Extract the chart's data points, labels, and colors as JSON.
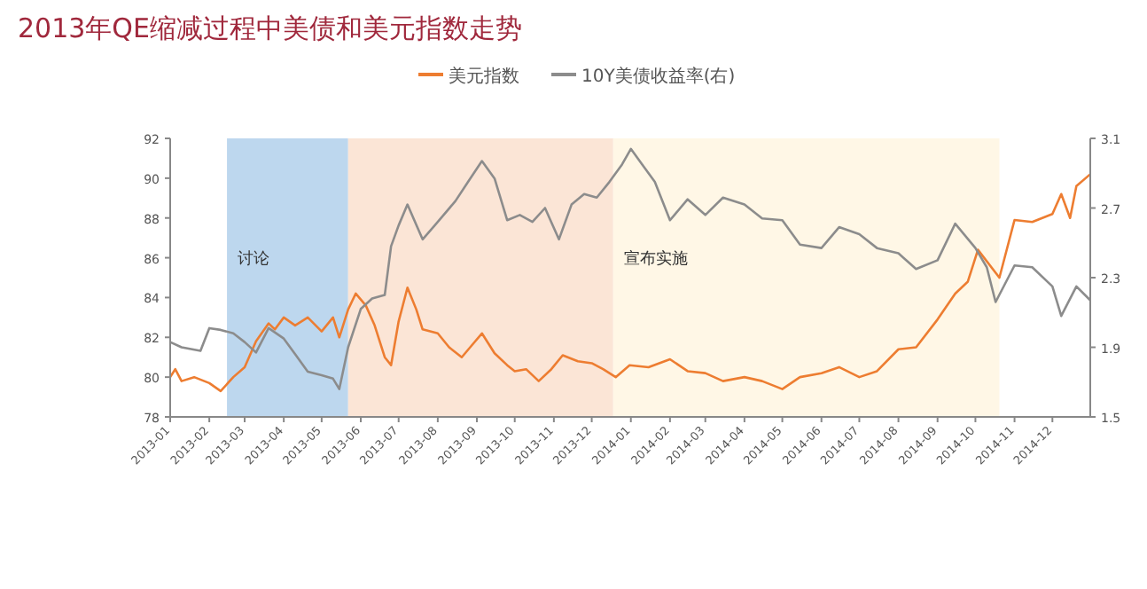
{
  "chart_data": {
    "type": "line",
    "title": "2013年QE缩减过程中美债和美元指数走势",
    "legend": "top",
    "xlim": [
      "2013-01-01",
      "2014-12-31"
    ],
    "xticks": [
      "2013-01",
      "2013-02",
      "2013-03",
      "2013-04",
      "2013-05",
      "2013-06",
      "2013-07",
      "2013-08",
      "2013-09",
      "2013-10",
      "2013-11",
      "2013-12",
      "2014-01",
      "2014-02",
      "2014-03",
      "2014-04",
      "2014-05",
      "2014-06",
      "2014-07",
      "2014-08",
      "2014-09",
      "2014-10",
      "2014-11",
      "2014-12"
    ],
    "ylim": [
      78,
      92
    ],
    "yticks": [
      78,
      80,
      82,
      84,
      86,
      88,
      90,
      92
    ],
    "y2lim": [
      1.5,
      3.1
    ],
    "y2ticks": [
      1.5,
      1.9,
      2.3,
      2.7,
      3.1
    ],
    "bands": [
      {
        "axis": "x",
        "from": "2013-02-15",
        "to": "2013-05-22",
        "label": "讨论",
        "color": "#bdd7ee"
      },
      {
        "axis": "x",
        "from": "2013-05-22",
        "to": "2013-12-18",
        "color": "#fbe5d6"
      },
      {
        "axis": "x",
        "from": "2013-12-18",
        "to": "2014-10-20",
        "label": "宣布实施",
        "color": "#fff7e6"
      }
    ],
    "series": [
      {
        "name": "美元指数",
        "color": "#ed7d31",
        "x": [
          "2013-01-01",
          "2013-01-05",
          "2013-01-10",
          "2013-01-20",
          "2013-02-01",
          "2013-02-10",
          "2013-02-20",
          "2013-03-01",
          "2013-03-10",
          "2013-03-20",
          "2013-03-25",
          "2013-04-01",
          "2013-04-10",
          "2013-04-20",
          "2013-05-01",
          "2013-05-10",
          "2013-05-15",
          "2013-05-22",
          "2013-05-28",
          "2013-06-05",
          "2013-06-12",
          "2013-06-20",
          "2013-06-25",
          "2013-07-01",
          "2013-07-08",
          "2013-07-15",
          "2013-07-20",
          "2013-08-01",
          "2013-08-10",
          "2013-08-20",
          "2013-08-28",
          "2013-09-05",
          "2013-09-15",
          "2013-09-25",
          "2013-10-01",
          "2013-10-10",
          "2013-10-20",
          "2013-10-30",
          "2013-11-08",
          "2013-11-20",
          "2013-12-01",
          "2013-12-10",
          "2013-12-20",
          "2013-12-31",
          "2014-01-15",
          "2014-02-01",
          "2014-02-15",
          "2014-03-01",
          "2014-03-15",
          "2014-04-01",
          "2014-04-15",
          "2014-05-01",
          "2014-05-15",
          "2014-06-01",
          "2014-06-15",
          "2014-07-01",
          "2014-07-15",
          "2014-08-01",
          "2014-08-15",
          "2014-09-01",
          "2014-09-15",
          "2014-09-25",
          "2014-10-03",
          "2014-10-20",
          "2014-11-01",
          "2014-11-15",
          "2014-12-01",
          "2014-12-08",
          "2014-12-15",
          "2014-12-20",
          "2014-12-31"
        ],
        "values": [
          80.0,
          80.4,
          79.8,
          80.0,
          79.7,
          79.3,
          80.0,
          80.5,
          81.8,
          82.7,
          82.4,
          83.0,
          82.6,
          83.0,
          82.3,
          83.0,
          82.0,
          83.4,
          84.2,
          83.6,
          82.6,
          81.0,
          80.6,
          82.8,
          84.5,
          83.4,
          82.4,
          82.2,
          81.5,
          81.0,
          81.6,
          82.2,
          81.2,
          80.6,
          80.3,
          80.4,
          79.8,
          80.4,
          81.1,
          80.8,
          80.7,
          80.4,
          80.0,
          80.6,
          80.5,
          80.9,
          80.3,
          80.2,
          79.8,
          80.0,
          79.8,
          79.4,
          80.0,
          80.2,
          80.5,
          80.0,
          80.3,
          81.4,
          81.5,
          82.9,
          84.2,
          84.8,
          86.4,
          85.0,
          87.9,
          87.8,
          88.2,
          89.2,
          88.0,
          89.6,
          90.2
        ]
      },
      {
        "name": "10Y美债收益率(右)",
        "color": "#8c8c8c",
        "axis": "y2",
        "x": [
          "2013-01-01",
          "2013-01-10",
          "2013-01-25",
          "2013-02-01",
          "2013-02-10",
          "2013-02-20",
          "2013-03-01",
          "2013-03-10",
          "2013-03-20",
          "2013-04-01",
          "2013-04-10",
          "2013-04-20",
          "2013-05-01",
          "2013-05-10",
          "2013-05-15",
          "2013-05-22",
          "2013-06-01",
          "2013-06-10",
          "2013-06-20",
          "2013-06-25",
          "2013-07-01",
          "2013-07-08",
          "2013-07-20",
          "2013-08-01",
          "2013-08-15",
          "2013-08-25",
          "2013-09-05",
          "2013-09-15",
          "2013-09-25",
          "2013-10-05",
          "2013-10-15",
          "2013-10-25",
          "2013-11-05",
          "2013-11-15",
          "2013-11-25",
          "2013-12-05",
          "2013-12-15",
          "2013-12-25",
          "2014-01-01",
          "2014-01-10",
          "2014-01-20",
          "2014-02-01",
          "2014-02-15",
          "2014-03-01",
          "2014-03-15",
          "2014-04-01",
          "2014-04-15",
          "2014-05-01",
          "2014-05-15",
          "2014-06-01",
          "2014-06-15",
          "2014-07-01",
          "2014-07-15",
          "2014-08-01",
          "2014-08-15",
          "2014-09-01",
          "2014-09-15",
          "2014-10-01",
          "2014-10-10",
          "2014-10-17",
          "2014-11-01",
          "2014-11-15",
          "2014-12-01",
          "2014-12-08",
          "2014-12-20",
          "2014-12-31"
        ],
        "values": [
          1.93,
          1.9,
          1.88,
          2.01,
          2.0,
          1.98,
          1.93,
          1.87,
          2.01,
          1.95,
          1.86,
          1.76,
          1.74,
          1.72,
          1.66,
          1.9,
          2.12,
          2.18,
          2.2,
          2.48,
          2.6,
          2.72,
          2.52,
          2.62,
          2.74,
          2.85,
          2.97,
          2.87,
          2.63,
          2.66,
          2.62,
          2.7,
          2.52,
          2.72,
          2.78,
          2.76,
          2.85,
          2.95,
          3.04,
          2.95,
          2.85,
          2.63,
          2.75,
          2.66,
          2.76,
          2.72,
          2.64,
          2.63,
          2.49,
          2.47,
          2.59,
          2.55,
          2.47,
          2.44,
          2.35,
          2.4,
          2.61,
          2.47,
          2.36,
          2.16,
          2.37,
          2.36,
          2.25,
          2.08,
          2.25,
          2.17
        ]
      }
    ]
  }
}
